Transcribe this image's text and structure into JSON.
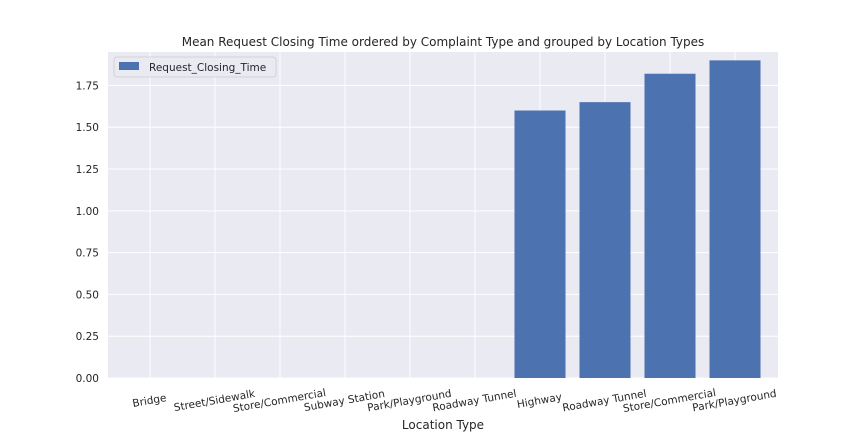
{
  "chart_data": {
    "type": "bar",
    "title": "Mean Request Closing Time ordered by Complaint Type and grouped by Location Types",
    "xlabel": "Location Type",
    "ylabel": "",
    "categories": [
      "Bridge",
      "Street/Sidewalk",
      "Store/Commercial",
      "Subway Station",
      "Park/Playground",
      "Roadway Tunnel",
      "Highway",
      "Roadway Tunnel",
      "Store/Commercial",
      "Park/Playground"
    ],
    "series": [
      {
        "name": "Request_Closing_Time",
        "values": [
          0.0,
          0.0,
          0.0,
          0.0,
          0.0,
          0.0,
          1.6,
          1.65,
          1.82,
          1.9
        ]
      }
    ],
    "ylim": [
      0,
      1.95
    ],
    "yticks": [
      "0.00",
      "0.25",
      "0.50",
      "0.75",
      "1.00",
      "1.25",
      "1.50",
      "1.75"
    ],
    "grid": true,
    "legend_position": "top-left",
    "colors": {
      "bar": "#4c72b0",
      "background": "#eaeaf2",
      "grid": "#ffffff"
    }
  }
}
